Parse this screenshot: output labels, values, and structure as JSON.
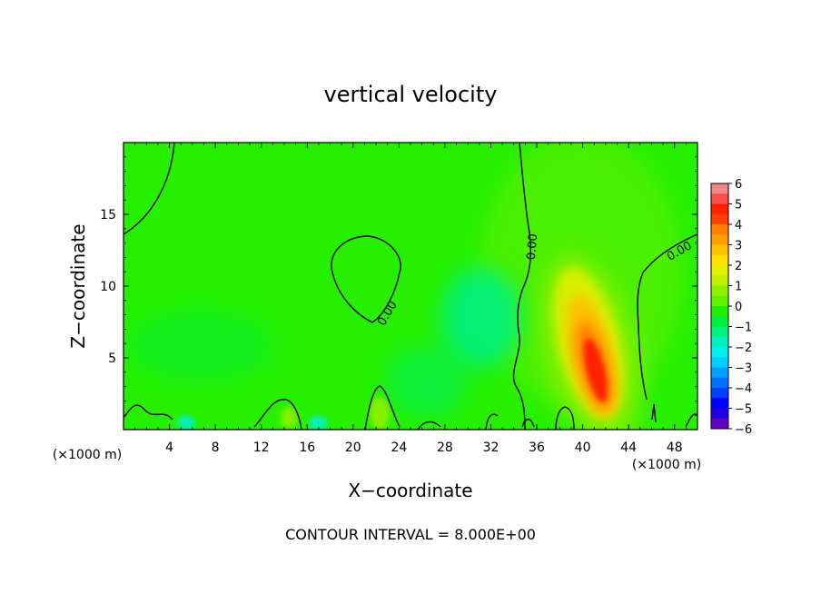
{
  "chart_data": {
    "type": "heatmap",
    "title": "vertical velocity",
    "xlabel": "X−coordinate",
    "ylabel": "Z−coordinate",
    "x_unit_label": "(×1000 m)",
    "x_unit_label_right": "(×1000 m)",
    "footer": "CONTOUR INTERVAL = 8.000E+00",
    "xlim": [
      0,
      50
    ],
    "ylim": [
      0,
      20
    ],
    "x_ticks": [
      "4",
      "8",
      "12",
      "16",
      "20",
      "24",
      "28",
      "32",
      "36",
      "40",
      "44",
      "48"
    ],
    "x_tick_values": [
      4,
      8,
      12,
      16,
      20,
      24,
      28,
      32,
      36,
      40,
      44,
      48
    ],
    "y_ticks": [
      "5",
      "10",
      "15"
    ],
    "y_tick_values": [
      5,
      10,
      15
    ],
    "colorbar": {
      "labels": [
        "6",
        "5",
        "4",
        "3",
        "2",
        "1",
        "0",
        "−1",
        "−2",
        "−3",
        "−4",
        "−5",
        "−6"
      ],
      "levels": [
        6,
        5.5,
        5,
        4.5,
        4,
        3.5,
        3,
        2.5,
        2,
        1.5,
        1,
        0.5,
        0,
        -0.5,
        -1,
        -1.5,
        -2,
        -2.5,
        -3,
        -3.5,
        -4,
        -4.5,
        -5,
        -5.5,
        -6
      ],
      "colors": [
        "#f08888",
        "#f85050",
        "#ff2000",
        "#ff4000",
        "#ff8000",
        "#ffa000",
        "#ffc000",
        "#ffe000",
        "#e0f000",
        "#c0f000",
        "#90f000",
        "#60f000",
        "#20f000",
        "#00f040",
        "#00f080",
        "#00f0c0",
        "#00f0f0",
        "#00d0ff",
        "#00a0ff",
        "#0070ff",
        "#0040ff",
        "#0000ff",
        "#2000e0",
        "#6000c0"
      ]
    },
    "contour_labels": [
      "0.00",
      "0.00",
      "0.00"
    ],
    "features": [
      {
        "type": "updraft",
        "x": 41,
        "z": 4.5,
        "w_max": 5.5
      },
      {
        "type": "downdraft",
        "x": 30.5,
        "z": 8,
        "w_min": -1.5
      }
    ]
  }
}
